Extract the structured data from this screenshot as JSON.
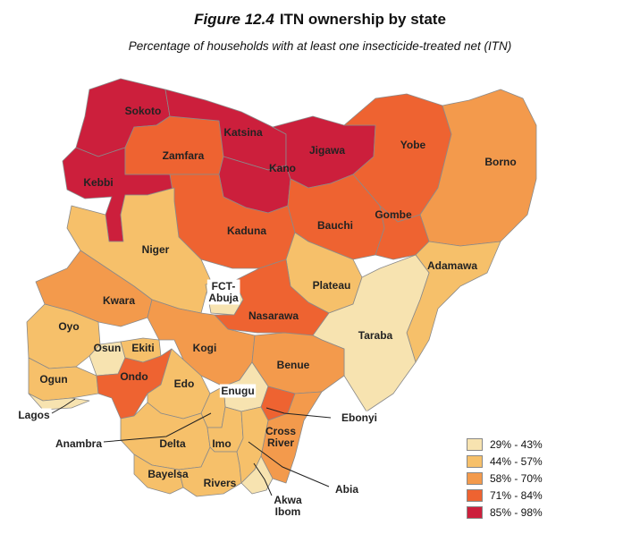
{
  "figure": {
    "number": "Figure 12.4",
    "title": "ITN ownership by state"
  },
  "subtitle": "Percentage of households with at least one insecticide-treated net (ITN)",
  "legend": [
    {
      "label": "29% - 43%",
      "color": "#f7e3b0"
    },
    {
      "label": "44% - 57%",
      "color": "#f6c06a"
    },
    {
      "label": "58% - 70%",
      "color": "#f39a4c"
    },
    {
      "label": "71% - 84%",
      "color": "#ee6331"
    },
    {
      "label": "85% - 98%",
      "color": "#cc1f3c"
    }
  ],
  "states": [
    {
      "name": "Sokoto",
      "class": 4
    },
    {
      "name": "Kebbi",
      "class": 4
    },
    {
      "name": "Zamfara",
      "class": 3
    },
    {
      "name": "Katsina",
      "class": 4
    },
    {
      "name": "Kano",
      "class": 4
    },
    {
      "name": "Jigawa",
      "class": 4
    },
    {
      "name": "Yobe",
      "class": 3
    },
    {
      "name": "Borno",
      "class": 2
    },
    {
      "name": "Kaduna",
      "class": 3
    },
    {
      "name": "Bauchi",
      "class": 3
    },
    {
      "name": "Gombe",
      "class": 3
    },
    {
      "name": "Niger",
      "class": 1
    },
    {
      "name": "FCT-\nAbuja",
      "class": 0
    },
    {
      "name": "Plateau",
      "class": 1
    },
    {
      "name": "Adamawa",
      "class": 1
    },
    {
      "name": "Kwara",
      "class": 2
    },
    {
      "name": "Nasarawa",
      "class": 3
    },
    {
      "name": "Taraba",
      "class": 0
    },
    {
      "name": "Oyo",
      "class": 1
    },
    {
      "name": "Osun",
      "class": 0
    },
    {
      "name": "Ekiti",
      "class": 1
    },
    {
      "name": "Kogi",
      "class": 2
    },
    {
      "name": "Benue",
      "class": 2
    },
    {
      "name": "Ogun",
      "class": 1
    },
    {
      "name": "Ondo",
      "class": 3
    },
    {
      "name": "Edo",
      "class": 1
    },
    {
      "name": "Enugu",
      "class": 0
    },
    {
      "name": "Lagos",
      "class": 0
    },
    {
      "name": "Ebonyi",
      "class": 3
    },
    {
      "name": "Anambra",
      "class": 1
    },
    {
      "name": "Delta",
      "class": 1
    },
    {
      "name": "Imo",
      "class": 1
    },
    {
      "name": "Cross\nRiver",
      "class": 2
    },
    {
      "name": "Bayelsa",
      "class": 1
    },
    {
      "name": "Rivers",
      "class": 1
    },
    {
      "name": "Abia",
      "class": 1
    },
    {
      "name": "Akwa\nIbom",
      "class": 0
    }
  ]
}
